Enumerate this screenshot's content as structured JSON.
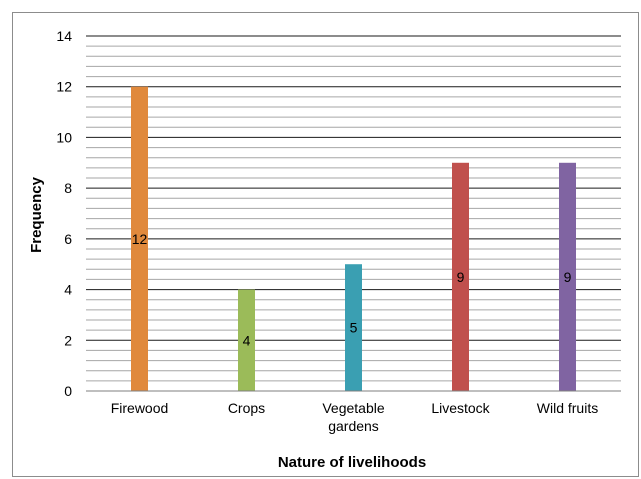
{
  "chart_data": {
    "type": "bar",
    "categories": [
      "Firewood",
      "Crops",
      "Vegetable gardens",
      "Livestock",
      "Wild fruits"
    ],
    "category_lines": [
      [
        "Firewood"
      ],
      [
        "Crops"
      ],
      [
        "Vegetable",
        "gardens"
      ],
      [
        "Livestock"
      ],
      [
        "Wild fruits"
      ]
    ],
    "values": [
      12,
      4,
      5,
      9,
      9
    ],
    "data_labels": [
      "12",
      "4",
      "5",
      "9",
      "9"
    ],
    "colors": [
      "#e0893c",
      "#9bbb59",
      "#3a9fb2",
      "#c0504d",
      "#8064a2"
    ],
    "title": "",
    "xlabel": "Nature of livelihoods",
    "ylabel": "Frequency",
    "ylim": [
      0,
      14
    ],
    "yticks": [
      0,
      2,
      4,
      6,
      8,
      10,
      12,
      14
    ],
    "minor_step": 0.4,
    "grid": true,
    "legend": "none"
  }
}
